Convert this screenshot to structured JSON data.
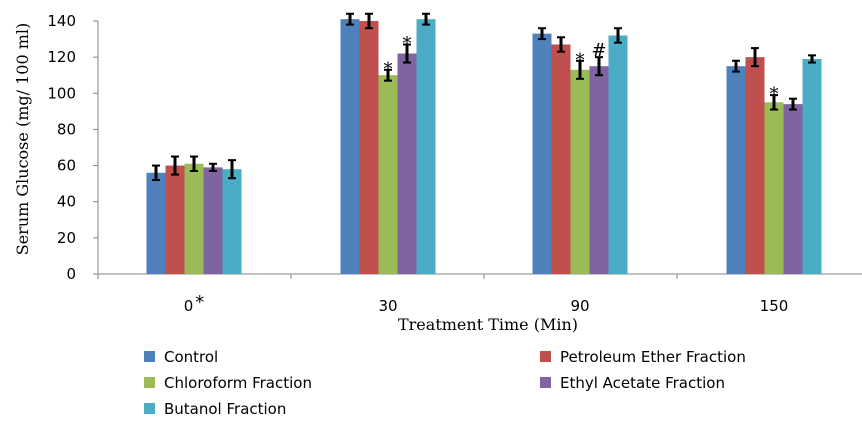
{
  "chart_data": {
    "type": "bar",
    "xlabel": "Treatment Time (Min)",
    "ylabel": "Serum Glucose (mg/ 100 ml)",
    "ylim": [
      0,
      140
    ],
    "yticks": [
      0,
      20,
      40,
      60,
      80,
      100,
      120,
      140
    ],
    "categories": [
      "0",
      "30",
      "90",
      "150"
    ],
    "category_suffix": [
      "*",
      "",
      "",
      ""
    ],
    "grid": false,
    "legend_position": "bottom",
    "series": [
      {
        "name": "Control",
        "color": "#4f81bd",
        "values": [
          56,
          141,
          133,
          115
        ],
        "errors": [
          4,
          3,
          3,
          3
        ]
      },
      {
        "name": "Petroleum Ether Fraction",
        "color": "#c0504d",
        "values": [
          60,
          140,
          127,
          120
        ],
        "errors": [
          5,
          4,
          4,
          5
        ]
      },
      {
        "name": "Chloroform Fraction",
        "color": "#9bbb59",
        "values": [
          61,
          110,
          113,
          95
        ],
        "errors": [
          4,
          3,
          5,
          4
        ]
      },
      {
        "name": "Ethyl Acetate Fraction",
        "color": "#8064a2",
        "values": [
          59,
          122,
          115,
          94
        ],
        "errors": [
          2,
          5,
          5,
          3
        ]
      },
      {
        "name": "Butanol Fraction",
        "color": "#4bacc6",
        "values": [
          58,
          141,
          132,
          119
        ],
        "errors": [
          5,
          3,
          4,
          2
        ]
      }
    ],
    "annotations": [
      {
        "category": 1,
        "series": 2,
        "text": "*"
      },
      {
        "category": 1,
        "series": 3,
        "text": "*"
      },
      {
        "category": 2,
        "series": 2,
        "text": "*"
      },
      {
        "category": 2,
        "series": 3,
        "text": "#"
      },
      {
        "category": 3,
        "series": 2,
        "text": "*"
      }
    ]
  }
}
